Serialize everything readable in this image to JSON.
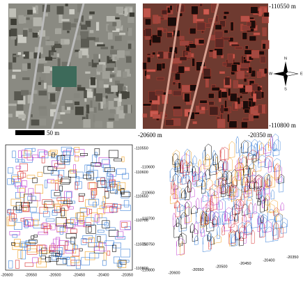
{
  "top": {
    "north_label": "-110550 m",
    "south_label": "-110800 m",
    "west_label": "-20600 m",
    "east_label": "-20350 m",
    "scale_label": "50 m",
    "compass": [
      "N",
      "E",
      "S",
      "W"
    ]
  },
  "plan_view": {
    "y_ticks": [
      "-110550",
      "-110600",
      "-110650",
      "-110700",
      "-110750",
      "-110800"
    ],
    "x_ticks": [
      "-20600",
      "-20550",
      "-20500",
      "-20450",
      "-20400",
      "-20350"
    ]
  },
  "perspective_view": {
    "y_ticks": [
      "-110600",
      "-110650",
      "-110700",
      "-110750",
      "-110800"
    ],
    "x_ticks": [
      "-20600",
      "-20550",
      "-20500",
      "-20450",
      "-20400",
      "-20350"
    ]
  }
}
